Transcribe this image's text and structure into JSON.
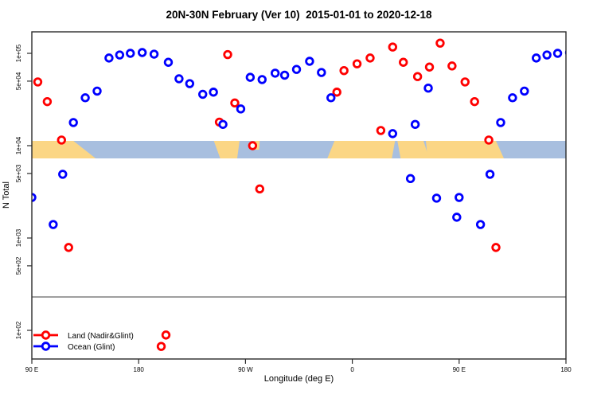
{
  "title": "20N-30N February (Ver 10)  2015-01-01 to 2020-12-18",
  "chart_data": {
    "type": "scatter",
    "xlabel": "Longitude (deg E)",
    "ylabel": "N Total",
    "x_axis": {
      "span_deg": 450,
      "start_label": "90 E",
      "ticks": [
        {
          "deg": 0,
          "label": "90 E"
        },
        {
          "deg": 90,
          "label": "180"
        },
        {
          "deg": 180,
          "label": "90 W"
        },
        {
          "deg": 270,
          "label": "0"
        },
        {
          "deg": 360,
          "label": "90 E"
        },
        {
          "deg": 450,
          "label": "180"
        }
      ]
    },
    "y_axis": {
      "scale": "log10",
      "ylim": [
        50,
        170000
      ],
      "ticks": [
        {
          "value": 100,
          "label": "1e+02"
        },
        {
          "value": 500,
          "label": "5e+02"
        },
        {
          "value": 1000,
          "label": "1e+03"
        },
        {
          "value": 5000,
          "label": "5e+03"
        },
        {
          "value": 10000,
          "label": "1e+04"
        },
        {
          "value": 50000,
          "label": "5e+04"
        },
        {
          "value": 100000,
          "label": "1e+05"
        }
      ]
    },
    "threshold_line": {
      "value": 230,
      "color": "#878787"
    },
    "map_band": {
      "center_value": 10000,
      "ocean_color": "#a8bfdf",
      "land_color": "#fbd685",
      "land_segments": [
        {
          "from_deg": 0,
          "to_deg": 35,
          "top_dx": [
            0,
            0
          ],
          "bottom_dx": [
            0,
            28
          ]
        },
        {
          "from_deg": 152,
          "to_deg": 175,
          "top_dx": [
            2,
            0
          ],
          "bottom_dx": [
            10,
            -3
          ]
        },
        {
          "from_deg": 188,
          "to_deg": 192,
          "top_dx": [
            0,
            0
          ],
          "bottom_dx": [
            0,
            -1
          ],
          "shallow": true
        },
        {
          "from_deg": 253,
          "to_deg": 306,
          "top_dx": [
            3,
            0
          ],
          "bottom_dx": [
            -6,
            -4
          ]
        },
        {
          "from_deg": 308,
          "to_deg": 330,
          "top_dx": [
            0,
            0
          ],
          "bottom_dx": [
            4,
            7
          ]
        },
        {
          "from_deg": 332,
          "to_deg": 391,
          "top_dx": [
            0,
            0
          ],
          "bottom_dx": [
            2,
            10
          ]
        }
      ]
    },
    "series": [
      {
        "id": "land",
        "name": "Land (Nadir&Glint)",
        "color": "#ff0000",
        "points_lon_value": [
          [
            95,
            49000
          ],
          [
            103,
            30000
          ],
          [
            115,
            11500
          ],
          [
            121,
            790
          ],
          [
            199,
            67
          ],
          [
            203,
            89
          ],
          [
            248,
            18000
          ],
          [
            255,
            97000
          ],
          [
            261,
            29000
          ],
          [
            276,
            10000
          ],
          [
            282,
            3400
          ],
          [
            347,
            38000
          ],
          [
            353,
            65000
          ],
          [
            4,
            77000
          ],
          [
            15,
            89000
          ],
          [
            24,
            14600
          ],
          [
            34,
            117000
          ],
          [
            43,
            80000
          ],
          [
            55,
            56000
          ],
          [
            65,
            71000
          ],
          [
            74,
            129000
          ],
          [
            84,
            73000
          ]
        ]
      },
      {
        "id": "ocean",
        "name": "Ocean (Glint)",
        "color": "#0000ff",
        "points_lon_value": [
          [
            125,
            17800
          ],
          [
            135,
            33000
          ],
          [
            145,
            39000
          ],
          [
            155,
            89000
          ],
          [
            164,
            96000
          ],
          [
            173,
            100000
          ],
          [
            183,
            102000
          ],
          [
            193,
            98000
          ],
          [
            205,
            80000
          ],
          [
            214,
            53000
          ],
          [
            223,
            47000
          ],
          [
            234,
            36000
          ],
          [
            243,
            38000
          ],
          [
            251,
            17000
          ],
          [
            266,
            25000
          ],
          [
            274,
            55000
          ],
          [
            284,
            52000
          ],
          [
            295,
            61000
          ],
          [
            303,
            58000
          ],
          [
            313,
            67000
          ],
          [
            324,
            82000
          ],
          [
            334,
            62000
          ],
          [
            342,
            33000
          ],
          [
            34,
            13500
          ],
          [
            49,
            4400
          ],
          [
            53,
            17000
          ],
          [
            64,
            42000
          ],
          [
            71,
            2700
          ],
          [
            88,
            1680
          ],
          [
            90,
            2750
          ],
          [
            108,
            1400
          ],
          [
            116,
            4900
          ]
        ]
      }
    ]
  }
}
